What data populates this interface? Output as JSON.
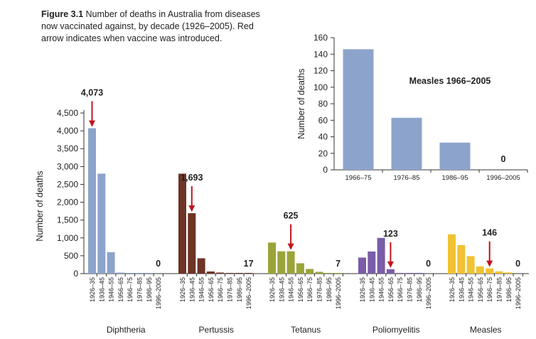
{
  "caption": {
    "figure_label": "Figure 3.1",
    "text": "Number of deaths in Australia from diseases now vaccinated against, by decade (1926–2005). Red arrow indicates when vaccine was introduced."
  },
  "colors": {
    "Diphtheria": "#8ca4cc",
    "Pertussis": "#6e3426",
    "Tetanus": "#9aa43a",
    "Poliomyelitis": "#7a5ca8",
    "Measles": "#f1c232",
    "arrow": "#c0141e",
    "inset": "#8ca4cc"
  },
  "chart_data": [
    {
      "type": "bar",
      "ylabel": "Number of deaths",
      "ylim": [
        0,
        4500
      ],
      "yticks": [
        0,
        500,
        1000,
        1500,
        2000,
        2500,
        3000,
        3500,
        4000,
        4500
      ],
      "ytick_labels": [
        "0",
        "500",
        "1,000",
        "1,500",
        "2,000",
        "2,500",
        "3,000",
        "3,500",
        "4,000",
        "4,500"
      ],
      "categories": [
        "1926–35",
        "1936–45",
        "1946–55",
        "1956–65",
        "1966–75",
        "1976–85",
        "1986–95",
        "1996–2005"
      ],
      "grid": false,
      "series": [
        {
          "name": "Diphtheria",
          "values": [
            4073,
            2800,
            600,
            30,
            5,
            2,
            1,
            0
          ],
          "label": "0",
          "label_index": 7,
          "arrow_index": 0,
          "arrow_label": "4,073"
        },
        {
          "name": "Pertussis",
          "values": [
            2800,
            1693,
            430,
            60,
            30,
            15,
            10,
            17
          ],
          "label": "17",
          "label_index": 7,
          "arrow_index": 1,
          "arrow_label": "1,693"
        },
        {
          "name": "Tetanus",
          "values": [
            870,
            625,
            625,
            290,
            130,
            50,
            20,
            7
          ],
          "label": "7",
          "label_index": 7,
          "arrow_index": 2,
          "arrow_label": "625"
        },
        {
          "name": "Poliomyelitis",
          "values": [
            450,
            620,
            1000,
            123,
            10,
            5,
            2,
            0
          ],
          "label": "0",
          "label_index": 7,
          "arrow_index": 3,
          "arrow_label": "123"
        },
        {
          "name": "Measles",
          "values": [
            1100,
            800,
            490,
            200,
            146,
            63,
            33,
            0
          ],
          "label": "0",
          "label_index": 7,
          "arrow_index": 4,
          "arrow_label": "146"
        }
      ]
    },
    {
      "type": "bar",
      "title": "Measles 1966–2005",
      "ylabel": "Number of deaths",
      "ylim": [
        0,
        160
      ],
      "yticks": [
        0,
        20,
        40,
        60,
        80,
        100,
        120,
        140,
        160
      ],
      "categories": [
        "1966–75",
        "1976–85",
        "1986–95",
        "1996–2005"
      ],
      "values": [
        146,
        63,
        33,
        0
      ],
      "data_labels": [
        "",
        "",
        "",
        "0"
      ]
    }
  ]
}
